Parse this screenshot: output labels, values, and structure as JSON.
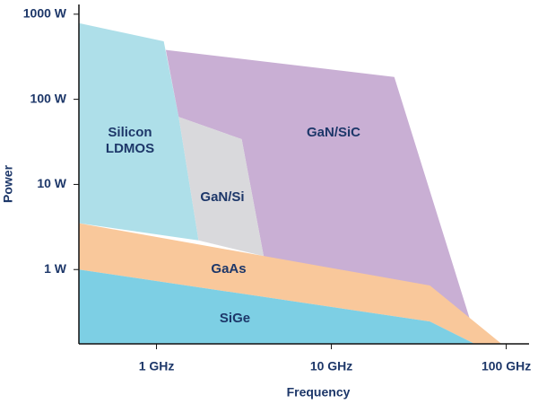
{
  "chart_data": {
    "type": "area",
    "x_label": "Frequency",
    "y_label": "Power",
    "log_x": true,
    "log_y": true,
    "xlim": [
      0.36,
      135
    ],
    "ylim": [
      0.134,
      1300
    ],
    "xticks": [
      {
        "value": 1,
        "label": "1 GHz"
      },
      {
        "value": 10,
        "label": "10 GHz"
      },
      {
        "value": 100,
        "label": "100 GHz"
      }
    ],
    "yticks": [
      {
        "value": 1,
        "label": "1 W"
      },
      {
        "value": 10,
        "label": "10 W"
      },
      {
        "value": 100,
        "label": "100 W"
      },
      {
        "value": 1000,
        "label": "1000 W"
      }
    ],
    "series": [
      {
        "name": "Silicon LDMOS",
        "color": "#aedfe9",
        "x": [
          0.36,
          1.1,
          1.34,
          1.74,
          0.36
        ],
        "values": [
          785,
          480,
          62,
          2.2,
          3.5
        ]
      },
      {
        "name": "GaN/SiC",
        "color": "#c9afd4",
        "x": [
          1.13,
          22.9,
          62,
          4.1,
          3.07,
          1.34
        ],
        "values": [
          380,
          183,
          0.26,
          1.44,
          34,
          62
        ]
      },
      {
        "name": "GaN/Si",
        "color": "#d9d9dc",
        "x": [
          1.34,
          3.07,
          4.1,
          1.74
        ],
        "values": [
          62,
          34,
          1.44,
          2.2
        ]
      },
      {
        "name": "GaAs",
        "color": "#f9c89b",
        "x": [
          0.36,
          36.6,
          94,
          66,
          36.6,
          0.36
        ],
        "values": [
          3.5,
          0.65,
          0.134,
          0.134,
          0.245,
          1
        ]
      },
      {
        "name": "SiGe",
        "color": "#7dcfe4",
        "x": [
          0.36,
          36.6,
          66,
          0.36
        ],
        "values": [
          1,
          0.245,
          0.134,
          0.134
        ]
      }
    ]
  }
}
